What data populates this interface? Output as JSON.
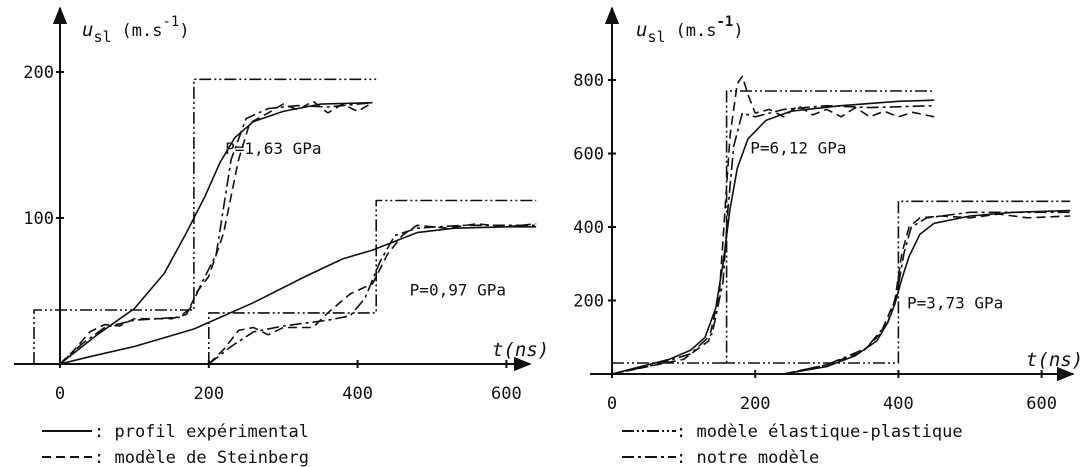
{
  "legend": {
    "items": [
      {
        "style": "solid",
        "label": ": profil expérimental"
      },
      {
        "style": "dashed",
        "label": ": modèle de Steinberg"
      },
      {
        "style": "dash-dot-dot",
        "label": ": modèle élastique-plastique"
      },
      {
        "style": "dash-dot",
        "label": ": notre modèle"
      }
    ]
  },
  "chart_data": [
    {
      "type": "line",
      "ylabel_main": "u",
      "ylabel_sub": "sl",
      "ylabel_unit": "(m.s",
      "ylabel_exp": "-1",
      "ylabel_close": ")",
      "xlabel": "t(ns)",
      "xlim": [
        -60,
        650
      ],
      "ylim": [
        -15,
        225
      ],
      "xticks": [
        0,
        200,
        400,
        600
      ],
      "xtick_labels": [
        "0",
        "200",
        "400",
        "600"
      ],
      "yticks": [
        100,
        200
      ],
      "ytick_labels": [
        "100",
        "200"
      ],
      "annotations": [
        {
          "text": "P=1,63 GPa",
          "x": 222,
          "y": 144
        },
        {
          "text": "P=0,97 GPa",
          "x": 470,
          "y": 47
        }
      ],
      "series": [
        {
          "style": "solid",
          "points": [
            [
              0,
              0
            ],
            [
              20,
              8
            ],
            [
              50,
              20
            ],
            [
              100,
              38
            ],
            [
              140,
              62
            ],
            [
              170,
              90
            ],
            [
              195,
              115
            ],
            [
              215,
              138
            ],
            [
              235,
              155
            ],
            [
              260,
              166
            ],
            [
              300,
              173
            ],
            [
              350,
              178
            ],
            [
              420,
              179
            ]
          ]
        },
        {
          "style": "dashed",
          "points": [
            [
              0,
              0
            ],
            [
              20,
              10
            ],
            [
              40,
              22
            ],
            [
              60,
              27
            ],
            [
              80,
              26
            ],
            [
              100,
              31
            ],
            [
              150,
              31
            ],
            [
              170,
              34
            ],
            [
              185,
              50
            ],
            [
              200,
              60
            ],
            [
              220,
              90
            ],
            [
              240,
              140
            ],
            [
              255,
              165
            ],
            [
              280,
              172
            ],
            [
              300,
              178
            ],
            [
              320,
              174
            ],
            [
              340,
              180
            ],
            [
              360,
              172
            ],
            [
              380,
              178
            ],
            [
              400,
              173
            ],
            [
              420,
              179
            ]
          ]
        },
        {
          "style": "dash-dot-dot",
          "points": [
            [
              -35,
              0
            ],
            [
              -35,
              37
            ],
            [
              180,
              37
            ],
            [
              180,
              195
            ],
            [
              425,
              195
            ]
          ]
        },
        {
          "style": "dash-dot",
          "points": [
            [
              0,
              0
            ],
            [
              30,
              14
            ],
            [
              60,
              25
            ],
            [
              100,
              30
            ],
            [
              160,
              32
            ],
            [
              175,
              38
            ],
            [
              190,
              55
            ],
            [
              210,
              75
            ],
            [
              230,
              140
            ],
            [
              250,
              168
            ],
            [
              280,
              175
            ],
            [
              320,
              177
            ],
            [
              360,
              176
            ],
            [
              420,
              179
            ]
          ]
        },
        {
          "style": "solid",
          "points": [
            [
              0,
              0
            ],
            [
              40,
              5
            ],
            [
              100,
              12
            ],
            [
              180,
              24
            ],
            [
              260,
              42
            ],
            [
              330,
              60
            ],
            [
              380,
              72
            ],
            [
              420,
              78
            ],
            [
              450,
              84
            ],
            [
              480,
              90
            ],
            [
              530,
              93
            ],
            [
              600,
              94
            ],
            [
              640,
              94
            ]
          ]
        },
        {
          "style": "dashed",
          "points": [
            [
              200,
              0
            ],
            [
              220,
              10
            ],
            [
              240,
              23
            ],
            [
              260,
              25
            ],
            [
              280,
              20
            ],
            [
              300,
              25
            ],
            [
              340,
              25
            ],
            [
              360,
              35
            ],
            [
              390,
              48
            ],
            [
              420,
              55
            ],
            [
              440,
              75
            ],
            [
              460,
              88
            ],
            [
              480,
              95
            ],
            [
              520,
              93
            ],
            [
              560,
              96
            ],
            [
              600,
              94
            ],
            [
              640,
              96
            ]
          ]
        },
        {
          "style": "dash-dot-dot",
          "points": [
            [
              200,
              0
            ],
            [
              200,
              35
            ],
            [
              425,
              35
            ],
            [
              425,
              112
            ],
            [
              640,
              112
            ]
          ]
        },
        {
          "style": "dash-dot",
          "points": [
            [
              200,
              0
            ],
            [
              230,
              12
            ],
            [
              260,
              22
            ],
            [
              300,
              26
            ],
            [
              360,
              30
            ],
            [
              390,
              33
            ],
            [
              410,
              45
            ],
            [
              430,
              70
            ],
            [
              450,
              88
            ],
            [
              480,
              93
            ],
            [
              540,
              95
            ],
            [
              640,
              95
            ]
          ]
        }
      ]
    },
    {
      "type": "line",
      "ylabel_main": "u",
      "ylabel_sub": "sl",
      "ylabel_unit": "(m.s",
      "ylabel_exp": "-1",
      "ylabel_close": ")",
      "xlabel": "t(ns)",
      "xlim": [
        0,
        660
      ],
      "ylim": [
        -30,
        860
      ],
      "xticks": [
        0,
        200,
        400,
        600
      ],
      "xtick_labels": [
        "0",
        "200",
        "400",
        "600"
      ],
      "yticks": [
        200,
        400,
        600,
        800
      ],
      "ytick_labels": [
        "200",
        "400",
        "600",
        "800"
      ],
      "annotations": [
        {
          "text": "P=6,12 GPa",
          "x": 193,
          "y": 600
        },
        {
          "text": "P=3,73 GPa",
          "x": 412,
          "y": 178
        }
      ],
      "series": [
        {
          "style": "solid",
          "points": [
            [
              0,
              0
            ],
            [
              40,
              20
            ],
            [
              80,
              40
            ],
            [
              110,
              65
            ],
            [
              130,
              100
            ],
            [
              145,
              180
            ],
            [
              155,
              300
            ],
            [
              165,
              450
            ],
            [
              175,
              560
            ],
            [
              190,
              640
            ],
            [
              215,
              690
            ],
            [
              250,
              715
            ],
            [
              320,
              730
            ],
            [
              400,
              742
            ],
            [
              450,
              745
            ]
          ]
        },
        {
          "style": "dashed",
          "points": [
            [
              0,
              0
            ],
            [
              50,
              20
            ],
            [
              100,
              40
            ],
            [
              135,
              90
            ],
            [
              150,
              220
            ],
            [
              158,
              450
            ],
            [
              165,
              650
            ],
            [
              175,
              790
            ],
            [
              182,
              810
            ],
            [
              190,
              760
            ],
            [
              200,
              710
            ],
            [
              220,
              720
            ],
            [
              240,
              700
            ],
            [
              260,
              730
            ],
            [
              280,
              705
            ],
            [
              300,
              720
            ],
            [
              320,
              700
            ],
            [
              340,
              725
            ],
            [
              360,
              700
            ],
            [
              380,
              715
            ],
            [
              400,
              700
            ],
            [
              420,
              712
            ],
            [
              450,
              700
            ]
          ]
        },
        {
          "style": "dash-dot-dot",
          "points": [
            [
              0,
              30
            ],
            [
              160,
              30
            ],
            [
              160,
              770
            ],
            [
              450,
              770
            ]
          ]
        },
        {
          "style": "dash-dot",
          "points": [
            [
              0,
              0
            ],
            [
              60,
              25
            ],
            [
              110,
              55
            ],
            [
              140,
              110
            ],
            [
              155,
              250
            ],
            [
              162,
              450
            ],
            [
              170,
              620
            ],
            [
              182,
              710
            ],
            [
              200,
              700
            ],
            [
              240,
              720
            ],
            [
              300,
              730
            ],
            [
              360,
              725
            ],
            [
              450,
              730
            ]
          ]
        },
        {
          "style": "solid",
          "points": [
            [
              240,
              0
            ],
            [
              300,
              20
            ],
            [
              340,
              50
            ],
            [
              370,
              90
            ],
            [
              385,
              140
            ],
            [
              395,
              190
            ],
            [
              405,
              260
            ],
            [
              415,
              320
            ],
            [
              430,
              380
            ],
            [
              450,
              410
            ],
            [
              500,
              430
            ],
            [
              560,
              440
            ],
            [
              640,
              445
            ]
          ]
        },
        {
          "style": "dashed",
          "points": [
            [
              240,
              0
            ],
            [
              300,
              25
            ],
            [
              350,
              60
            ],
            [
              375,
              110
            ],
            [
              395,
              200
            ],
            [
              405,
              330
            ],
            [
              415,
              400
            ],
            [
              430,
              425
            ],
            [
              460,
              430
            ],
            [
              500,
              425
            ],
            [
              540,
              435
            ],
            [
              580,
              425
            ],
            [
              640,
              430
            ]
          ]
        },
        {
          "style": "dash-dot-dot",
          "points": [
            [
              155,
              30
            ],
            [
              400,
              30
            ],
            [
              400,
              470
            ],
            [
              640,
              470
            ]
          ]
        },
        {
          "style": "dash-dot",
          "points": [
            [
              240,
              0
            ],
            [
              300,
              25
            ],
            [
              355,
              70
            ],
            [
              385,
              140
            ],
            [
              398,
              220
            ],
            [
              408,
              330
            ],
            [
              418,
              400
            ],
            [
              440,
              425
            ],
            [
              500,
              440
            ],
            [
              560,
              440
            ],
            [
              640,
              440
            ]
          ]
        }
      ]
    }
  ]
}
